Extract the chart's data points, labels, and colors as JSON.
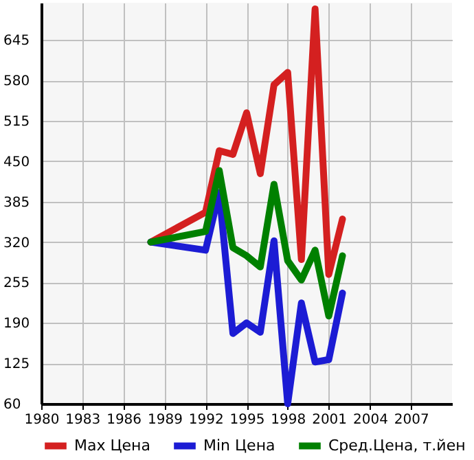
{
  "chart_data": {
    "type": "line",
    "x": [
      1988,
      1992,
      1993,
      1994,
      1995,
      1996,
      1997,
      1998,
      1999,
      2000,
      2001,
      2002
    ],
    "series": [
      {
        "name": "Max Цена",
        "color": "#d42020",
        "values": [
          320,
          368,
          467,
          461,
          528,
          430,
          573,
          593,
          292,
          695,
          268,
          357
        ]
      },
      {
        "name": "Min Цена",
        "color": "#1c1cd4",
        "values": [
          320,
          307,
          400,
          173,
          190,
          175,
          322,
          60,
          222,
          127,
          131,
          238
        ]
      },
      {
        "name": "Сред.Цена, т.йен",
        "color": "#008000",
        "values": [
          320,
          337,
          435,
          311,
          298,
          280,
          413,
          290,
          259,
          307,
          201,
          298
        ]
      }
    ],
    "xlim": [
      1980,
      2010
    ],
    "xticks": [
      1980,
      1983,
      1986,
      1989,
      1992,
      1995,
      1998,
      2001,
      2004,
      2007
    ],
    "ylim": [
      60,
      705
    ],
    "yticks": [
      60,
      125,
      190,
      255,
      320,
      385,
      450,
      515,
      580,
      645
    ],
    "grid": true,
    "legend": "bottom",
    "marker": "none",
    "line_style": "solid"
  }
}
